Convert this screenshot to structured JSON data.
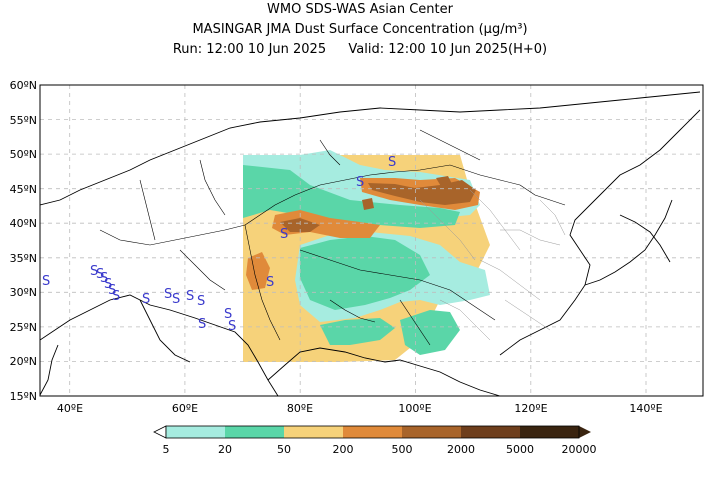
{
  "header": {
    "line1": "WMO SDS-WAS Asian Center",
    "line2": "MASINGAR JMA Dust Surface Concentration (μg/m³)",
    "line3_run": "Run: 12:00 10 Jun 2025",
    "line3_valid": "Valid: 12:00 10 Jun 2025(H+0)"
  },
  "map": {
    "lon_range": [
      35,
      150
    ],
    "lat_range": [
      15,
      60
    ],
    "lon_ticks": [
      "40ºE",
      "60ºE",
      "80ºE",
      "100ºE",
      "120ºE",
      "140ºE"
    ],
    "lat_ticks": [
      "15ºN",
      "20ºN",
      "25ºN",
      "30ºN",
      "35ºN",
      "40ºN",
      "45ºN",
      "50ºN",
      "55ºN",
      "60ºN"
    ],
    "grid": true,
    "dust_marker_symbol": "S",
    "dust_marker_color": "#3a3acc"
  },
  "colorbar": {
    "boundaries": [
      "5",
      "20",
      "50",
      "200",
      "500",
      "2000",
      "5000",
      "20000"
    ],
    "colors": [
      "#a6ece0",
      "#5ad6a8",
      "#f6d27a",
      "#e08a3a",
      "#a8642a",
      "#6e3e1c",
      "#3a2410"
    ],
    "extend": "both"
  },
  "colors": {
    "low_dust": "#a6ece0",
    "mid_dust": "#5ad6a8",
    "moderate_dust": "#f6d27a",
    "high_dust": "#e08a3a",
    "very_high_dust": "#a8642a",
    "extreme_dust": "#6e3e1c"
  }
}
